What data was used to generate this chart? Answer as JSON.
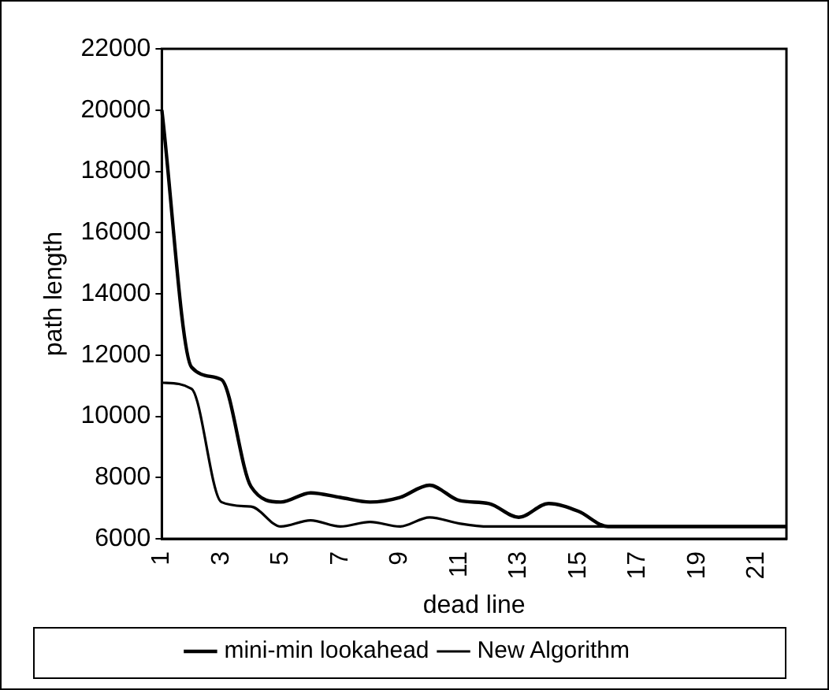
{
  "chart_data": {
    "type": "line",
    "xlabel": "dead line",
    "ylabel": "path length",
    "categories": [
      "1",
      null,
      "3",
      null,
      "5",
      null,
      "7",
      null,
      "9",
      null,
      "11",
      null,
      "13",
      null,
      "15",
      null,
      "17",
      null,
      "19",
      null,
      "21",
      null
    ],
    "series": [
      {
        "name": "mini-min lookahead",
        "color": "#000000",
        "values": [
          20000,
          11600,
          11200,
          7700,
          7200,
          7500,
          7350,
          7200,
          7350,
          7750,
          7250,
          7150,
          6700,
          7150,
          6900,
          6400,
          6400,
          6400,
          6400,
          6400,
          6400,
          6400
        ]
      },
      {
        "name": "New Algorithm",
        "color": "#000000",
        "values": [
          11100,
          10900,
          7200,
          7050,
          6400,
          6600,
          6400,
          6550,
          6400,
          6700,
          6500,
          6400,
          6400,
          6400,
          6400,
          6400,
          6400,
          6400,
          6400,
          6400,
          6400,
          6400
        ]
      }
    ],
    "ylim": [
      6000,
      22000
    ],
    "yticks": [
      6000,
      8000,
      10000,
      12000,
      14000,
      16000,
      18000,
      20000,
      22000
    ],
    "grid": false,
    "legend": "bottom",
    "marker": "none",
    "line_style": "solid"
  }
}
